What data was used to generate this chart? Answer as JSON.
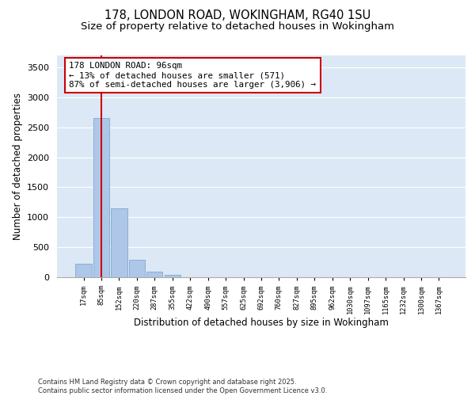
{
  "title_line1": "178, LONDON ROAD, WOKINGHAM, RG40 1SU",
  "title_line2": "Size of property relative to detached houses in Wokingham",
  "xlabel": "Distribution of detached houses by size in Wokingham",
  "ylabel": "Number of detached properties",
  "bar_color": "#aec6e8",
  "bar_edge_color": "#7aadce",
  "categories": [
    "17sqm",
    "85sqm",
    "152sqm",
    "220sqm",
    "287sqm",
    "355sqm",
    "422sqm",
    "490sqm",
    "557sqm",
    "625sqm",
    "692sqm",
    "760sqm",
    "827sqm",
    "895sqm",
    "962sqm",
    "1030sqm",
    "1097sqm",
    "1165sqm",
    "1232sqm",
    "1300sqm",
    "1367sqm"
  ],
  "values": [
    220,
    2650,
    1150,
    290,
    95,
    35,
    0,
    0,
    0,
    0,
    0,
    0,
    0,
    0,
    0,
    0,
    0,
    0,
    0,
    0,
    0
  ],
  "vline_x": 1,
  "vline_color": "#cc0000",
  "annotation_text": "178 LONDON ROAD: 96sqm\n← 13% of detached houses are smaller (571)\n87% of semi-detached houses are larger (3,906) →",
  "ylim": [
    0,
    3700
  ],
  "yticks": [
    0,
    500,
    1000,
    1500,
    2000,
    2500,
    3000,
    3500
  ],
  "bg_color": "#dce8f5",
  "grid_color": "#ffffff",
  "footnote": "Contains HM Land Registry data © Crown copyright and database right 2025.\nContains public sector information licensed under the Open Government Licence v3.0.",
  "title_fontsize": 10.5,
  "subtitle_fontsize": 9.5,
  "footnote_fontsize": 6.0
}
